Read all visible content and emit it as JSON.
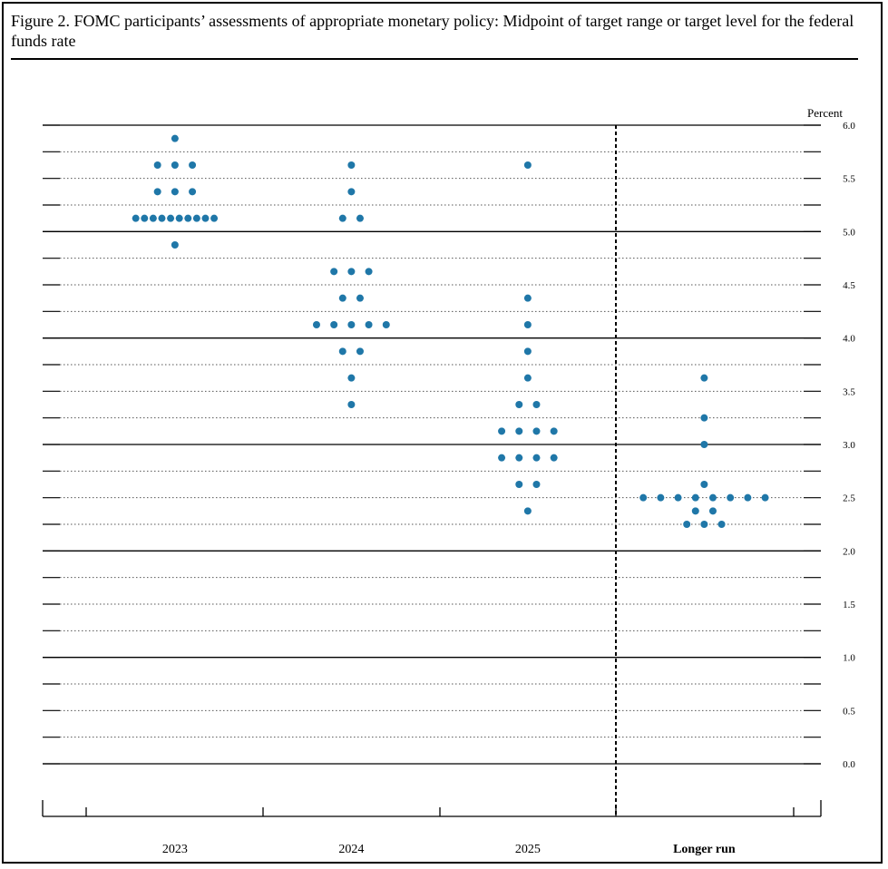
{
  "title": "Figure 2.  FOMC participants’ assessments of appropriate monetary policy: Midpoint of target range or target level for the federal funds rate",
  "chart_data": {
    "type": "scatter",
    "subtype": "dot-plot",
    "unit_label": "Percent",
    "categories": [
      "2023",
      "2024",
      "2025",
      "Longer run"
    ],
    "ylim": [
      0,
      6
    ],
    "y_ticks": [
      "0.0",
      "0.5",
      "1.0",
      "1.5",
      "2.0",
      "2.5",
      "3.0",
      "3.5",
      "4.0",
      "4.5",
      "5.0",
      "5.5",
      "6.0"
    ],
    "grid": "dotted every 0.25, solid every 1.0",
    "separator_before": "Longer run",
    "dot_color": "#1f77a8",
    "series": [
      {
        "category": "2023",
        "points": [
          {
            "y": 5.875,
            "count": 1
          },
          {
            "y": 5.625,
            "count": 3
          },
          {
            "y": 5.375,
            "count": 3
          },
          {
            "y": 5.125,
            "count": 10
          },
          {
            "y": 4.875,
            "count": 1
          }
        ]
      },
      {
        "category": "2024",
        "points": [
          {
            "y": 5.625,
            "count": 1
          },
          {
            "y": 5.375,
            "count": 1
          },
          {
            "y": 5.125,
            "count": 2
          },
          {
            "y": 4.625,
            "count": 3
          },
          {
            "y": 4.375,
            "count": 2
          },
          {
            "y": 4.125,
            "count": 5
          },
          {
            "y": 3.875,
            "count": 2
          },
          {
            "y": 3.625,
            "count": 1
          },
          {
            "y": 3.375,
            "count": 1
          }
        ]
      },
      {
        "category": "2025",
        "points": [
          {
            "y": 5.625,
            "count": 1
          },
          {
            "y": 4.375,
            "count": 1
          },
          {
            "y": 4.125,
            "count": 1
          },
          {
            "y": 3.875,
            "count": 1
          },
          {
            "y": 3.625,
            "count": 1
          },
          {
            "y": 3.375,
            "count": 2
          },
          {
            "y": 3.125,
            "count": 4
          },
          {
            "y": 2.875,
            "count": 4
          },
          {
            "y": 2.625,
            "count": 2
          },
          {
            "y": 2.375,
            "count": 1
          }
        ]
      },
      {
        "category": "Longer run",
        "points": [
          {
            "y": 3.625,
            "count": 1
          },
          {
            "y": 3.25,
            "count": 1
          },
          {
            "y": 3.0,
            "count": 1
          },
          {
            "y": 2.625,
            "count": 1
          },
          {
            "y": 2.5,
            "count": 8
          },
          {
            "y": 2.375,
            "count": 2
          },
          {
            "y": 2.25,
            "count": 3
          }
        ]
      }
    ]
  }
}
